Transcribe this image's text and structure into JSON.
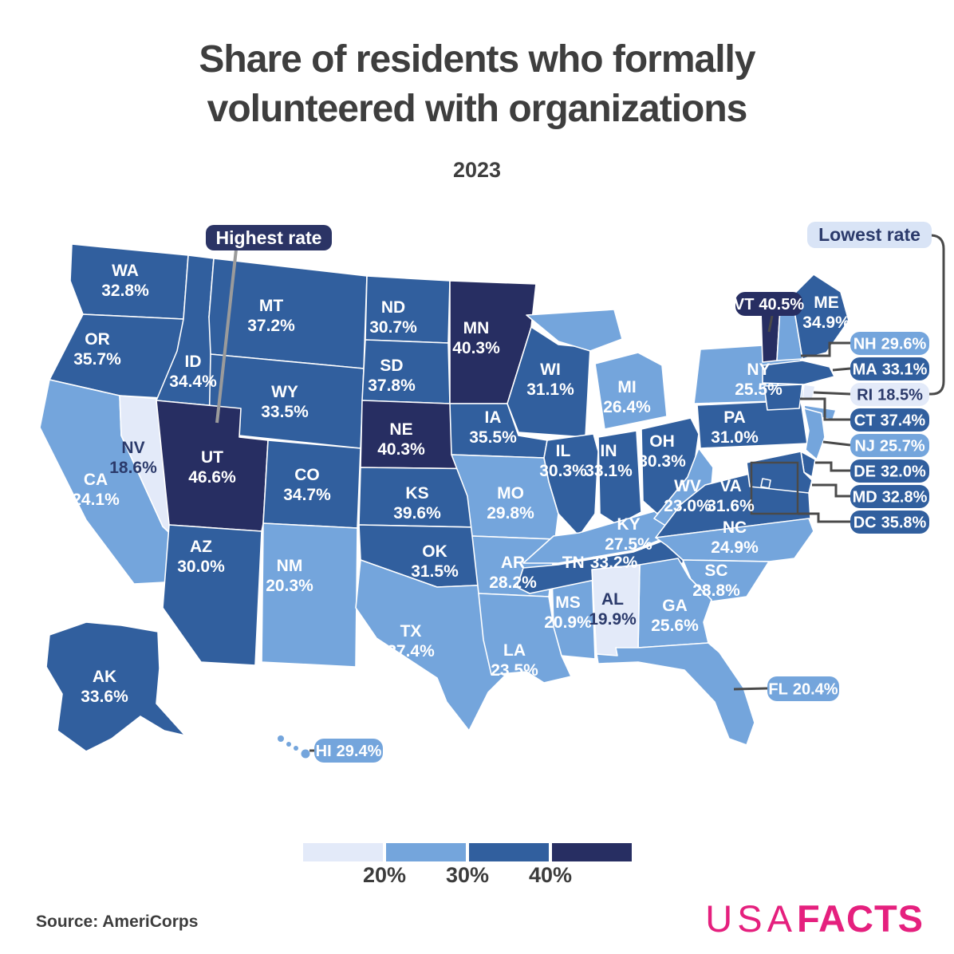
{
  "header": {
    "title_lines": [
      "Share of residents who formally",
      "volunteered with organizations"
    ],
    "subtitle": "2023"
  },
  "annotations": {
    "highest_label": "Highest rate",
    "highest_state": "UT",
    "lowest_label": "Lowest rate",
    "lowest_state": "RI"
  },
  "legend": {
    "labels": [
      "20%",
      "30%",
      "40%"
    ]
  },
  "footer": {
    "source": "Source: AmeriCorps",
    "logo_usa": "USA",
    "logo_facts": "FACTS"
  },
  "colors": {
    "band_fills": [
      "#e3eaf9",
      "#74a5dc",
      "#315f9e",
      "#272e62"
    ],
    "navy_text": "#2b3a6b",
    "title_text": "#3e3e3e",
    "brand_pink": "#e5207e",
    "connector_dark": "#4a4a4a",
    "connector_gray": "#9b9b9b",
    "lowest_pill_bg": "#d9e4f6",
    "highest_pill_bg": "#2b3465"
  },
  "chart_data": {
    "type": "choropleth",
    "title": "Share of residents who formally volunteered with organizations",
    "subtitle": "2023",
    "unit": "%",
    "legend_thresholds": [
      20,
      30,
      40
    ],
    "states": [
      {
        "abbr": "WA",
        "value": 32.8,
        "display": "32.8%"
      },
      {
        "abbr": "OR",
        "value": 35.7,
        "display": "35.7%"
      },
      {
        "abbr": "CA",
        "value": 24.1,
        "display": "24.1%"
      },
      {
        "abbr": "NV",
        "value": 18.6,
        "display": "18.6%"
      },
      {
        "abbr": "ID",
        "value": 34.4,
        "display": "34.4%"
      },
      {
        "abbr": "MT",
        "value": 37.2,
        "display": "37.2%"
      },
      {
        "abbr": "WY",
        "value": 33.5,
        "display": "33.5%"
      },
      {
        "abbr": "UT",
        "value": 46.6,
        "display": "46.6%"
      },
      {
        "abbr": "CO",
        "value": 34.7,
        "display": "34.7%"
      },
      {
        "abbr": "AZ",
        "value": 30.0,
        "display": "30.0%"
      },
      {
        "abbr": "NM",
        "value": 20.3,
        "display": "20.3%"
      },
      {
        "abbr": "ND",
        "value": 30.7,
        "display": "30.7%"
      },
      {
        "abbr": "SD",
        "value": 37.8,
        "display": "37.8%"
      },
      {
        "abbr": "NE",
        "value": 40.3,
        "display": "40.3%"
      },
      {
        "abbr": "KS",
        "value": 39.6,
        "display": "39.6%"
      },
      {
        "abbr": "OK",
        "value": 31.5,
        "display": "31.5%"
      },
      {
        "abbr": "TX",
        "value": 27.4,
        "display": "27.4%"
      },
      {
        "abbr": "MN",
        "value": 40.3,
        "display": "40.3%"
      },
      {
        "abbr": "IA",
        "value": 35.5,
        "display": "35.5%"
      },
      {
        "abbr": "MO",
        "value": 29.8,
        "display": "29.8%"
      },
      {
        "abbr": "AR",
        "value": 28.2,
        "display": "28.2%"
      },
      {
        "abbr": "LA",
        "value": 23.5,
        "display": "23.5%"
      },
      {
        "abbr": "WI",
        "value": 31.1,
        "display": "31.1%"
      },
      {
        "abbr": "IL",
        "value": 30.3,
        "display": "30.3%"
      },
      {
        "abbr": "MS",
        "value": 20.9,
        "display": "20.9%"
      },
      {
        "abbr": "MI",
        "value": 26.4,
        "display": "26.4%"
      },
      {
        "abbr": "IN",
        "value": 33.1,
        "display": "33.1%"
      },
      {
        "abbr": "KY",
        "value": 27.5,
        "display": "27.5%"
      },
      {
        "abbr": "TN",
        "value": 33.2,
        "display": "33.2%"
      },
      {
        "abbr": "OH",
        "value": 30.3,
        "display": "30.3%"
      },
      {
        "abbr": "WV",
        "value": 23.0,
        "display": "23.0%"
      },
      {
        "abbr": "VA",
        "value": 31.6,
        "display": "31.6%"
      },
      {
        "abbr": "NC",
        "value": 24.9,
        "display": "24.9%"
      },
      {
        "abbr": "SC",
        "value": 28.8,
        "display": "28.8%"
      },
      {
        "abbr": "GA",
        "value": 25.6,
        "display": "25.6%"
      },
      {
        "abbr": "AL",
        "value": 19.9,
        "display": "19.9%"
      },
      {
        "abbr": "FL",
        "value": 20.4,
        "display": "20.4%"
      },
      {
        "abbr": "NY",
        "value": 25.5,
        "display": "25.5%"
      },
      {
        "abbr": "PA",
        "value": 31.0,
        "display": "31.0%"
      },
      {
        "abbr": "NJ",
        "value": 25.7,
        "display": "25.7%"
      },
      {
        "abbr": "DE",
        "value": 32.0,
        "display": "32.0%"
      },
      {
        "abbr": "MD",
        "value": 32.8,
        "display": "32.8%"
      },
      {
        "abbr": "DC",
        "value": 35.8,
        "display": "35.8%"
      },
      {
        "abbr": "VT",
        "value": 40.5,
        "display": "40.5%"
      },
      {
        "abbr": "NH",
        "value": 29.6,
        "display": "29.6%"
      },
      {
        "abbr": "ME",
        "value": 34.9,
        "display": "34.9%"
      },
      {
        "abbr": "MA",
        "value": 33.1,
        "display": "33.1%"
      },
      {
        "abbr": "RI",
        "value": 18.5,
        "display": "18.5%"
      },
      {
        "abbr": "CT",
        "value": 37.4,
        "display": "37.4%"
      },
      {
        "abbr": "AK",
        "value": 33.6,
        "display": "33.6%"
      },
      {
        "abbr": "HI",
        "value": 29.4,
        "display": "29.4%"
      }
    ]
  }
}
